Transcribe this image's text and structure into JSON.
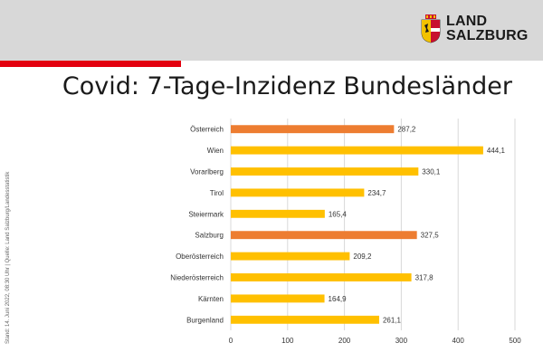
{
  "brand": {
    "line1": "LAND",
    "line2": "SALZBURG"
  },
  "title": "Covid: 7-Tage-Inzidenz Bundesländer",
  "source_note": "Stand: 14. Juni 2022, 08:30 Uhr | Quelle: Land Salzburg/Landesstatistik",
  "colors": {
    "header_bg": "#d8d8d8",
    "accent_red": "#e3000f",
    "bar_highlight": "#ed7d31",
    "bar_default": "#ffc000"
  },
  "chart_data": {
    "type": "bar",
    "orientation": "horizontal",
    "categories": [
      "Österreich",
      "Wien",
      "Vorarlberg",
      "Tirol",
      "Steiermark",
      "Salzburg",
      "Oberösterreich",
      "Niederösterreich",
      "Kärnten",
      "Burgenland"
    ],
    "values": [
      287.2,
      444.1,
      330.1,
      234.7,
      165.4,
      327.5,
      209.2,
      317.8,
      164.9,
      261.1
    ],
    "value_labels": [
      "287,2",
      "444,1",
      "330,1",
      "234,7",
      "165,4",
      "327,5",
      "209,2",
      "317,8",
      "164,9",
      "261,1"
    ],
    "highlighted": [
      "Österreich",
      "Salzburg"
    ],
    "xlim": [
      0,
      500
    ],
    "xticks": [
      0,
      100,
      200,
      300,
      400,
      500
    ],
    "grid": true,
    "legend": "none"
  }
}
